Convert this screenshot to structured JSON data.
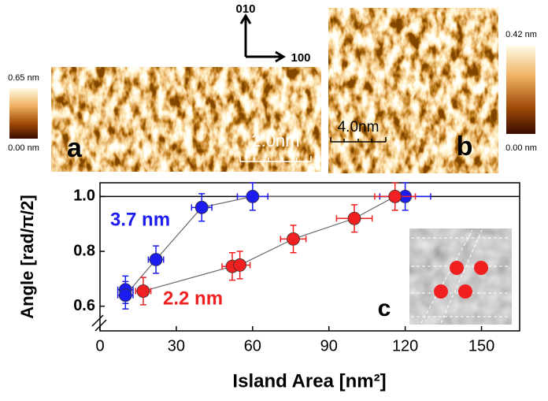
{
  "panels": {
    "a": {
      "label": "a",
      "colorbar_max": "0.65 nm",
      "colorbar_min": "0.00 nm",
      "scale_bar": "2.0nm"
    },
    "b": {
      "label": "b",
      "colorbar_max": "0.42 nm",
      "colorbar_min": "0.00 nm",
      "scale_bar": "4.0nm"
    },
    "directions": [
      "010",
      "100"
    ]
  },
  "chart_data": {
    "type": "scatter",
    "label": "c",
    "xlabel": "Island Area [nm²]",
    "ylabel": "Angle [rad/π/2]",
    "xlim": [
      0,
      165
    ],
    "ylim": [
      0.51,
      1.05
    ],
    "xticks": [
      0,
      30,
      60,
      90,
      120,
      150
    ],
    "yticks": [
      0.6,
      0.8,
      {
        "value": 1.0,
        "label": "1.0"
      }
    ],
    "series": [
      {
        "name": "3.7 nm",
        "color": "#1c1cf0",
        "x": [
          10,
          10,
          22,
          40,
          60,
          120
        ],
        "y": [
          0.66,
          0.64,
          0.77,
          0.96,
          1.0,
          1.0
        ],
        "x_err": [
          3,
          3,
          3,
          4,
          6,
          10
        ],
        "y_err": [
          0.05,
          0.05,
          0.05,
          0.05,
          0.05,
          0.05
        ]
      },
      {
        "name": "2.2 nm",
        "color": "#f02020",
        "x": [
          17,
          52,
          55,
          76,
          100,
          116
        ],
        "y": [
          0.655,
          0.745,
          0.75,
          0.845,
          0.92,
          1.0
        ],
        "x_err": [
          3,
          4,
          4,
          5,
          7,
          8
        ],
        "y_err": [
          0.05,
          0.05,
          0.05,
          0.05,
          0.05,
          0.05
        ]
      }
    ]
  }
}
